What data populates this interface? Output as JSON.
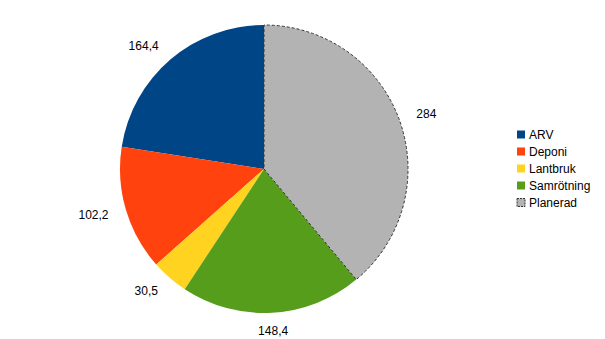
{
  "chart_data": {
    "type": "pie",
    "categories": [
      "ARV",
      "Deponi",
      "Lantbruk",
      "Samrötning",
      "Planerad"
    ],
    "values": [
      164.4,
      102.2,
      30.5,
      148.4,
      284
    ],
    "value_labels": [
      "164,4",
      "102,2",
      "30,5",
      "148,4",
      "284"
    ],
    "colors": [
      "#004586",
      "#ff420e",
      "#ffd320",
      "#579d1c",
      "#b3b3b3"
    ],
    "data_labels": true,
    "legend": "right"
  }
}
